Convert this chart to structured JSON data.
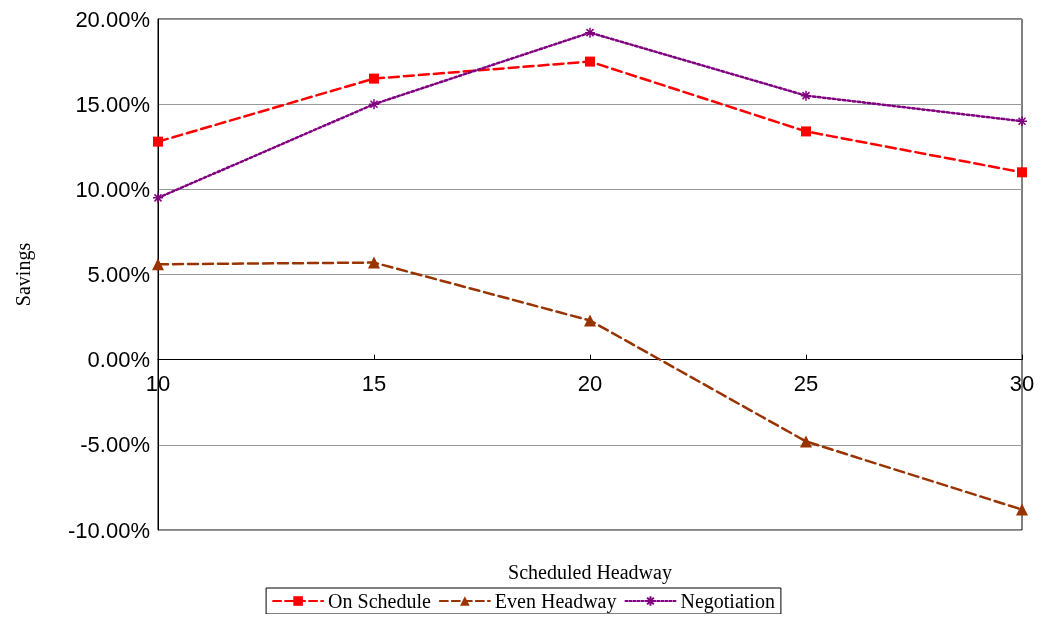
{
  "chart_data": {
    "type": "line",
    "xlabel": "Scheduled Headway",
    "ylabel": "Savings",
    "categories": [
      "10",
      "15",
      "20",
      "25",
      "30"
    ],
    "series": [
      {
        "name": "On Schedule",
        "color": "#ff0000",
        "marker": "square",
        "line_style": "dashed",
        "values": [
          12.8,
          16.5,
          17.5,
          13.4,
          11.0
        ]
      },
      {
        "name": "Even Headway",
        "color": "#993300",
        "marker": "triangle",
        "line_style": "dashed",
        "values": [
          5.6,
          5.7,
          2.3,
          -4.8,
          -8.8
        ]
      },
      {
        "name": "Negotiation",
        "color": "#800080",
        "marker": "cross",
        "line_style": "dotted",
        "values": [
          9.5,
          15.0,
          19.2,
          15.5,
          14.0
        ]
      }
    ],
    "ylim": [
      -10,
      20
    ],
    "yticks": [
      {
        "value": -10,
        "label": "-10.00%"
      },
      {
        "value": -5,
        "label": "-5.00%"
      },
      {
        "value": 0,
        "label": "0.00%"
      },
      {
        "value": 5,
        "label": "5.00%"
      },
      {
        "value": 10,
        "label": "10.00%"
      },
      {
        "value": 15,
        "label": "15.00%"
      },
      {
        "value": 20,
        "label": "20.00%"
      }
    ],
    "grid": "y",
    "legend": "bottom"
  }
}
